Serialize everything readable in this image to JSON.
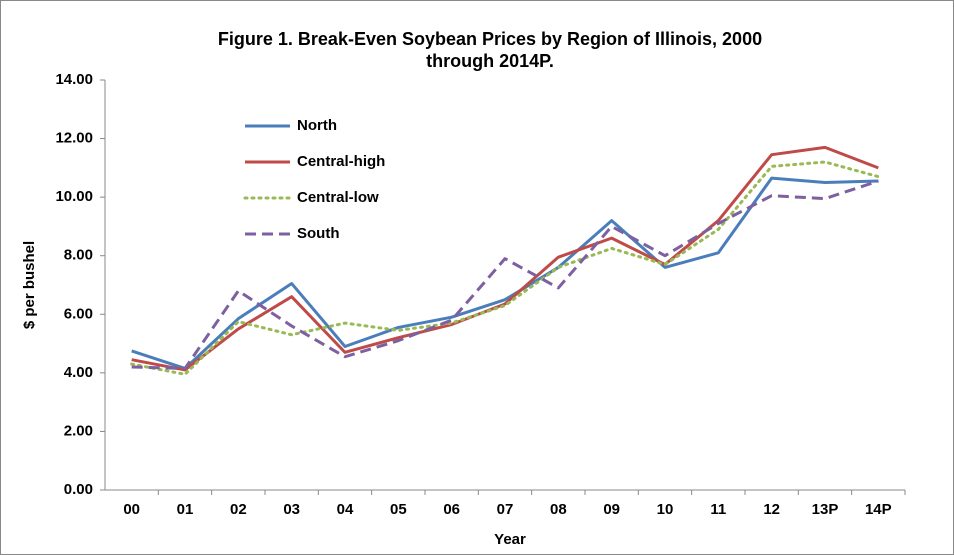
{
  "chart_data": {
    "type": "line",
    "title": [
      "Figure 1.  Break-Even Soybean Prices by Region of Illinois, 2000",
      "through 2014P."
    ],
    "x_label": "Year",
    "y_label": "$ per bushel",
    "categories": [
      "00",
      "01",
      "02",
      "03",
      "04",
      "05",
      "06",
      "07",
      "08",
      "09",
      "10",
      "11",
      "12",
      "13P",
      "14P"
    ],
    "series": [
      {
        "name": "North",
        "color": "#4a7ebb",
        "style": "solid",
        "values": [
          4.75,
          4.15,
          5.85,
          7.05,
          4.9,
          5.55,
          5.9,
          6.5,
          7.6,
          9.2,
          7.6,
          8.1,
          10.65,
          10.5,
          10.55
        ]
      },
      {
        "name": "Central-high",
        "color": "#be4b48",
        "style": "solid",
        "values": [
          4.45,
          4.1,
          5.5,
          6.6,
          4.7,
          5.2,
          5.65,
          6.35,
          7.95,
          8.6,
          7.7,
          9.2,
          11.45,
          11.7,
          11.0
        ]
      },
      {
        "name": "Central-low",
        "color": "#98b954",
        "style": "dotted",
        "values": [
          4.3,
          3.95,
          5.75,
          5.3,
          5.7,
          5.45,
          5.7,
          6.3,
          7.6,
          8.25,
          7.7,
          8.9,
          11.05,
          11.2,
          10.7
        ]
      },
      {
        "name": "South",
        "color": "#7d60a0",
        "style": "dashed",
        "values": [
          4.2,
          4.15,
          6.8,
          5.6,
          4.55,
          5.1,
          5.8,
          7.9,
          6.9,
          9.0,
          8.0,
          9.1,
          10.05,
          9.95,
          10.55
        ]
      }
    ],
    "ylim": [
      0,
      14
    ],
    "yticks": [
      {
        "value": 0,
        "label": "0.00"
      },
      {
        "value": 2,
        "label": "2.00"
      },
      {
        "value": 4,
        "label": "4.00"
      },
      {
        "value": 6,
        "label": "6.00"
      },
      {
        "value": 8,
        "label": "8.00"
      },
      {
        "value": 10,
        "label": "10.00"
      },
      {
        "value": 12,
        "label": "12.00"
      },
      {
        "value": 14,
        "label": "14.00"
      }
    ],
    "grid": false,
    "legend": "upper left"
  }
}
